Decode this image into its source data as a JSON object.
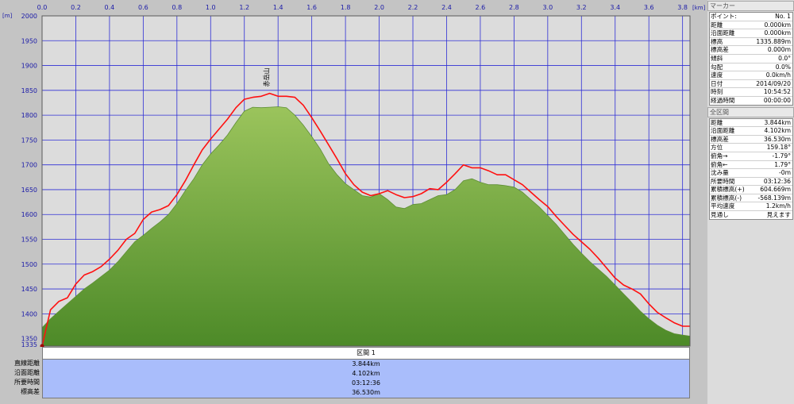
{
  "colors": {
    "plot_bg": "#dcdcdc",
    "grid": "#2f2fd6",
    "area_top": "#9bc45c",
    "area_bottom": "#4d8a28",
    "route_line": "#ff1010",
    "tick_text": "#1a1aa8"
  },
  "units": {
    "x": "[km]",
    "y": "[m]"
  },
  "chart_data": {
    "type": "area",
    "xlim": [
      0.0,
      3.844
    ],
    "ylim": [
      1335,
      2000
    ],
    "grid": true,
    "x_ticks": [
      "0.0",
      "0.2",
      "0.4",
      "0.6",
      "0.8",
      "1.0",
      "1.2",
      "1.4",
      "1.6",
      "1.8",
      "2.0",
      "2.2",
      "2.4",
      "2.6",
      "2.8",
      "3.0",
      "3.2",
      "3.4",
      "3.6",
      "3.8"
    ],
    "y_ticks": [
      "2000",
      "1950",
      "1900",
      "1850",
      "1800",
      "1750",
      "1700",
      "1650",
      "1600",
      "1550",
      "1500",
      "1450",
      "1400",
      "1350",
      "1335"
    ],
    "annotation": {
      "text": "赤岳山",
      "x": 1.33,
      "y": 1838
    },
    "series": [
      {
        "x": [
          0.0,
          0.05,
          0.1,
          0.15,
          0.2,
          0.25,
          0.3,
          0.35,
          0.4,
          0.45,
          0.5,
          0.55,
          0.6,
          0.65,
          0.7,
          0.75,
          0.8,
          0.85,
          0.9,
          0.95,
          1.0,
          1.05,
          1.1,
          1.15,
          1.2,
          1.25,
          1.3,
          1.35,
          1.4,
          1.45,
          1.5,
          1.55,
          1.6,
          1.65,
          1.7,
          1.75,
          1.8,
          1.85,
          1.9,
          1.95,
          2.0,
          2.05,
          2.1,
          2.15,
          2.2,
          2.25,
          2.3,
          2.35,
          2.4,
          2.45,
          2.5,
          2.55,
          2.6,
          2.65,
          2.7,
          2.75,
          2.8,
          2.85,
          2.9,
          2.95,
          3.0,
          3.05,
          3.1,
          3.15,
          3.2,
          3.25,
          3.3,
          3.35,
          3.4,
          3.45,
          3.5,
          3.55,
          3.6,
          3.65,
          3.7,
          3.75,
          3.8,
          3.844
        ],
        "values": [
          1372,
          1390,
          1405,
          1420,
          1435,
          1450,
          1462,
          1475,
          1488,
          1505,
          1525,
          1545,
          1558,
          1572,
          1585,
          1600,
          1622,
          1648,
          1672,
          1700,
          1722,
          1740,
          1760,
          1785,
          1808,
          1816,
          1815,
          1816,
          1817,
          1815,
          1800,
          1780,
          1757,
          1732,
          1702,
          1680,
          1662,
          1650,
          1638,
          1635,
          1642,
          1630,
          1615,
          1612,
          1620,
          1622,
          1630,
          1638,
          1640,
          1650,
          1668,
          1672,
          1665,
          1660,
          1660,
          1658,
          1655,
          1645,
          1630,
          1615,
          1598,
          1580,
          1560,
          1540,
          1522,
          1505,
          1490,
          1475,
          1458,
          1440,
          1423,
          1405,
          1390,
          1377,
          1367,
          1360,
          1357,
          1355
        ]
      },
      {
        "x": [
          0.0,
          0.05,
          0.1,
          0.15,
          0.2,
          0.25,
          0.3,
          0.35,
          0.4,
          0.45,
          0.5,
          0.55,
          0.6,
          0.65,
          0.7,
          0.75,
          0.8,
          0.85,
          0.9,
          0.95,
          1.0,
          1.05,
          1.1,
          1.15,
          1.2,
          1.25,
          1.3,
          1.35,
          1.4,
          1.45,
          1.5,
          1.55,
          1.6,
          1.65,
          1.7,
          1.75,
          1.8,
          1.85,
          1.9,
          1.95,
          2.0,
          2.05,
          2.1,
          2.15,
          2.2,
          2.25,
          2.3,
          2.35,
          2.4,
          2.45,
          2.5,
          2.55,
          2.6,
          2.65,
          2.7,
          2.75,
          2.8,
          2.85,
          2.9,
          2.95,
          3.0,
          3.05,
          3.1,
          3.15,
          3.2,
          3.25,
          3.3,
          3.35,
          3.4,
          3.45,
          3.5,
          3.55,
          3.6,
          3.65,
          3.7,
          3.75,
          3.8,
          3.844
        ],
        "values": [
          1335,
          1408,
          1425,
          1432,
          1460,
          1478,
          1485,
          1495,
          1510,
          1528,
          1550,
          1562,
          1590,
          1605,
          1610,
          1618,
          1640,
          1668,
          1700,
          1730,
          1752,
          1772,
          1792,
          1815,
          1832,
          1836,
          1838,
          1844,
          1838,
          1838,
          1836,
          1820,
          1795,
          1768,
          1740,
          1712,
          1682,
          1660,
          1645,
          1638,
          1642,
          1648,
          1640,
          1634,
          1636,
          1642,
          1652,
          1650,
          1665,
          1682,
          1700,
          1694,
          1694,
          1688,
          1680,
          1680,
          1670,
          1660,
          1645,
          1630,
          1616,
          1596,
          1578,
          1560,
          1545,
          1530,
          1512,
          1492,
          1472,
          1458,
          1450,
          1440,
          1420,
          1403,
          1392,
          1382,
          1375,
          1375
        ]
      }
    ]
  },
  "segment": {
    "header": "区間 1",
    "rows": [
      {
        "label": "直線距離",
        "value": "3.844km"
      },
      {
        "label": "沿面距離",
        "value": "4.102km"
      },
      {
        "label": "所要時間",
        "value": "03:12:36"
      },
      {
        "label": "標高差",
        "value": "36.530m"
      }
    ]
  },
  "panel": {
    "marker_title": "マーカー",
    "marker_rows": [
      {
        "k": "ポイント:",
        "v": "No. 1"
      },
      {
        "k": "距離",
        "v": "0.000km"
      },
      {
        "k": "沿面距離",
        "v": "0.000km"
      },
      {
        "k": "標高",
        "v": "1335.889m"
      },
      {
        "k": "標高差",
        "v": "0.000m"
      },
      {
        "k": "傾斜",
        "v": "0.0°"
      },
      {
        "k": "勾配",
        "v": "0.0%"
      },
      {
        "k": "速度",
        "v": "0.0km/h"
      },
      {
        "k": "日付",
        "v": "2014/09/20"
      },
      {
        "k": "時刻",
        "v": "10:54:52"
      },
      {
        "k": "経過時間",
        "v": "00:00:00"
      }
    ],
    "total_title": "全区間",
    "total_rows": [
      {
        "k": "距離",
        "v": "3.844km"
      },
      {
        "k": "沿面距離",
        "v": "4.102km"
      },
      {
        "k": "標高差",
        "v": "36.530m"
      },
      {
        "k": "方位",
        "v": "159.18°"
      },
      {
        "k": "俯角→",
        "v": "-1.79°"
      },
      {
        "k": "俯角←",
        "v": "1.79°"
      },
      {
        "k": "沈み量",
        "v": "-0m"
      },
      {
        "k": "所要時間",
        "v": "03:12:36"
      },
      {
        "k": "累積標高(+)",
        "v": "604.669m"
      },
      {
        "k": "累積標高(-)",
        "v": "-568.139m"
      },
      {
        "k": "平均速度",
        "v": "1.2km/h"
      },
      {
        "k": "見通し",
        "v": "見えます"
      }
    ]
  }
}
